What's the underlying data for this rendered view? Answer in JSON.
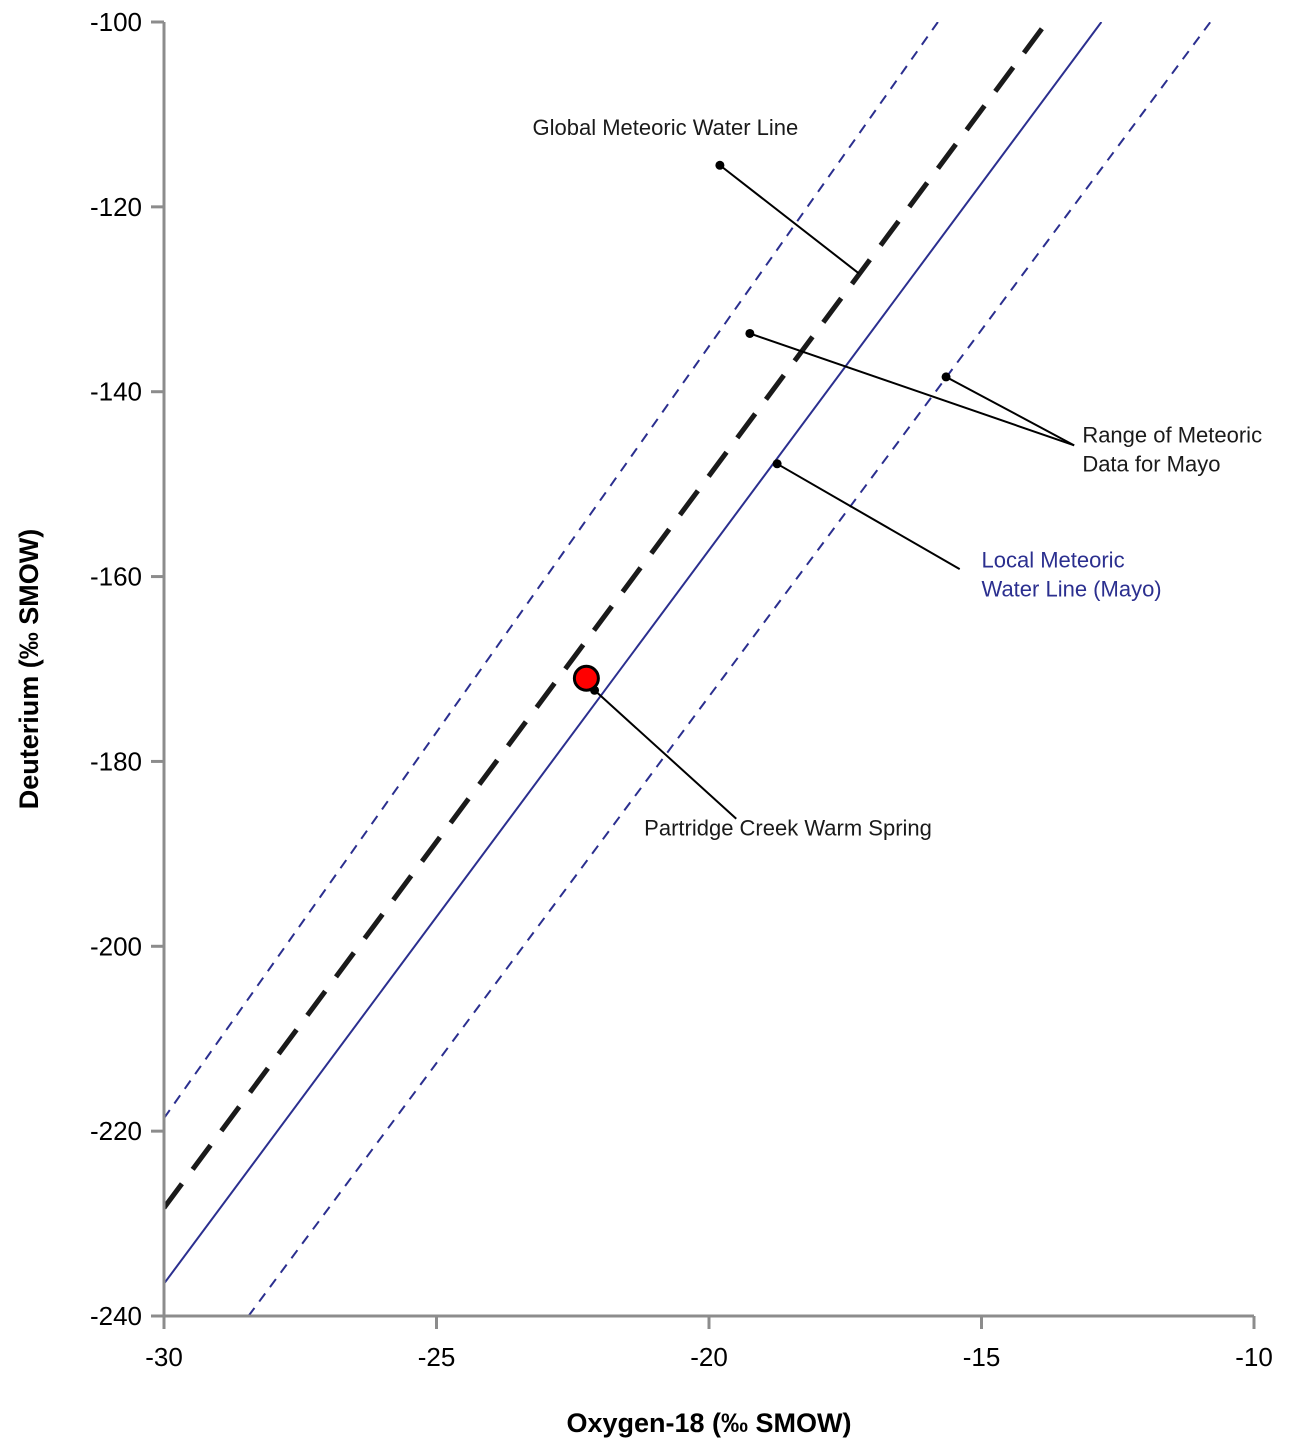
{
  "chart_data": {
    "type": "line",
    "xlabel": "Oxygen-18 (‰ SMOW)",
    "ylabel": "Deuterium (‰ SMOW)",
    "xlim": [
      -30,
      -10
    ],
    "ylim": [
      -240,
      -100
    ],
    "xticks": [
      -30,
      -25,
      -20,
      -15,
      -10
    ],
    "yticks": [
      -240,
      -220,
      -200,
      -180,
      -160,
      -140,
      -120,
      -100
    ],
    "grid": false,
    "legend": "none",
    "series": [
      {
        "key": "gmwl",
        "style": "long-dash",
        "color": "#1a1a1a",
        "x": [
          -30.0,
          -13.8
        ],
        "y": [
          -228.3,
          -100.0
        ]
      },
      {
        "key": "lmwl",
        "style": "solid",
        "color": "#2b2f8f",
        "x": [
          -30.0,
          -12.8
        ],
        "y": [
          -236.5,
          -100.0
        ]
      },
      {
        "key": "range_upper",
        "style": "short-dash",
        "color": "#2b2f8f",
        "x": [
          -30.0,
          -15.8
        ],
        "y": [
          -218.6,
          -100.0
        ]
      },
      {
        "key": "range_lower",
        "style": "short-dash",
        "color": "#2b2f8f",
        "x": [
          -28.45,
          -10.8
        ],
        "y": [
          -240.0,
          -100.0
        ]
      }
    ],
    "points": [
      {
        "x": -22.25,
        "y": -171.0,
        "color": "#ff0000"
      }
    ],
    "annotations": [
      {
        "lines": [
          "Global Meteoric Water Line"
        ],
        "color": "#1a1a1a",
        "text_x": -20.8,
        "text_y": -112.2,
        "text_anchor": "middle",
        "leader": [
          [
            -19.8,
            -115.5
          ],
          [
            -17.25,
            -127.2
          ]
        ]
      },
      {
        "lines": [
          "Range of Meteoric",
          "Data for Mayo"
        ],
        "color": "#1a1a1a",
        "text_x": -13.15,
        "text_y": -145.5,
        "text_anchor": "start",
        "leader": [
          [
            -19.25,
            -133.7
          ],
          [
            -13.3,
            -145.8
          ]
        ],
        "leader2": [
          [
            -15.65,
            -138.4
          ],
          [
            -13.3,
            -145.8
          ]
        ]
      },
      {
        "lines": [
          "Local Meteoric",
          "Water Line (Mayo)"
        ],
        "color": "#2b2f8f",
        "text_x": -15.0,
        "text_y": -159.0,
        "text_anchor": "start",
        "leader": [
          [
            -18.75,
            -147.8
          ],
          [
            -15.4,
            -159.2
          ]
        ]
      },
      {
        "lines": [
          "Partridge Creek Warm Spring"
        ],
        "color": "#1a1a1a",
        "text_x": -18.55,
        "text_y": -188.0,
        "text_anchor": "middle",
        "leader": [
          [
            -22.1,
            -172.3
          ],
          [
            -19.5,
            -186.2
          ]
        ]
      }
    ]
  }
}
